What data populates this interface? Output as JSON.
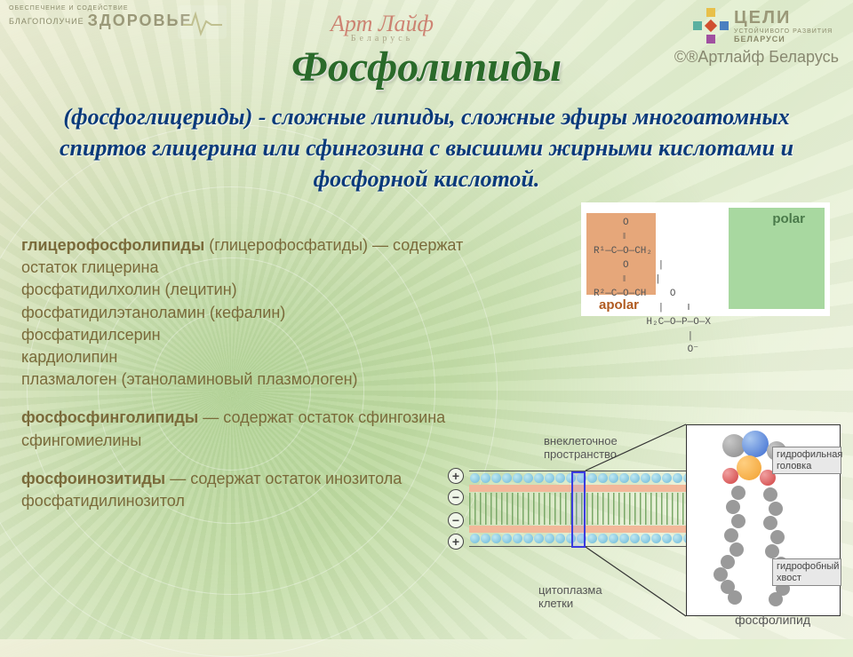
{
  "header": {
    "logo_left_small": "ОБЕСПЕЧЕНИЕ И СОДЕЙСТВИЕ",
    "logo_left_big": "ЗДОРОВЬЕ",
    "logo_left_sub": "БЛАГОПОЛУЧИЕ",
    "logo_center": "Арт Лайф",
    "logo_center_sub": "Беларусь",
    "logo_right_big": "ЦЕЛИ",
    "logo_right_small1": "УСТОЙЧИВОГО РАЗВИТИЯ",
    "logo_right_small2": "БЕЛАРУСИ",
    "copyright": "©®Артлайф Беларусь"
  },
  "title": "Фосфолипиды",
  "subtitle": "(фосфоглицериды) - сложные липиды, сложные эфиры многоатомных спиртов глицерина или сфингозина с высшими жирными кислотами и фосфорной кислотой.",
  "groups": [
    {
      "head": "глицерофосфолипиды",
      "head_rest": " (глицерофосфатиды) — содержат остаток глицерина",
      "items": [
        "фосфатидилхолин (лецитин)",
        "фосфатидилэтаноламин (кефалин)",
        "фосфатидилсерин",
        "кардиолипин",
        "плазмалоген (этаноламиновый плазмологен)"
      ]
    },
    {
      "head": "фосфосфинголипиды",
      "head_rest": " — содержат остаток сфингозина",
      "items": [
        "сфингомиелины"
      ]
    },
    {
      "head": "фосфоинозитиды",
      "head_rest": " — содержат остаток инозитола",
      "items": [
        "фосфатидилинозитол"
      ]
    }
  ],
  "chem": {
    "apolar": "apolar",
    "polar": "polar",
    "formula": "     O\n     ‖\nR¹—C—O—CH₂\n     O     |\n     ‖     |\nR²—C—O—CH    O\n           |    ‖\n         H₂C—O—P—O—X\n                |\n                O⁻",
    "bg_apolar": "#e6a77a",
    "bg_polar": "#a8d8a0"
  },
  "membrane": {
    "label_top": "внеклеточное пространство",
    "label_bottom": "цитоплазма клетки",
    "tag_head": "гидрофильная головка",
    "tag_tail": "гидрофобный хвост",
    "label_mol": "фосфолипид",
    "colors": {
      "head_blue": "#6ab8d8",
      "band": "#f2b89a",
      "tail": "#7aa868",
      "atom_gray": "#9a9a9a",
      "atom_blue": "#3a6ad0",
      "atom_orange": "#f2a030",
      "atom_red": "#d04040"
    }
  },
  "style": {
    "title_color": "#2a6a2a",
    "subtitle_color": "#0a3a7a",
    "body_color": "#7a6a3a",
    "title_fontsize": 48,
    "subtitle_fontsize": 26,
    "body_fontsize": 18
  }
}
